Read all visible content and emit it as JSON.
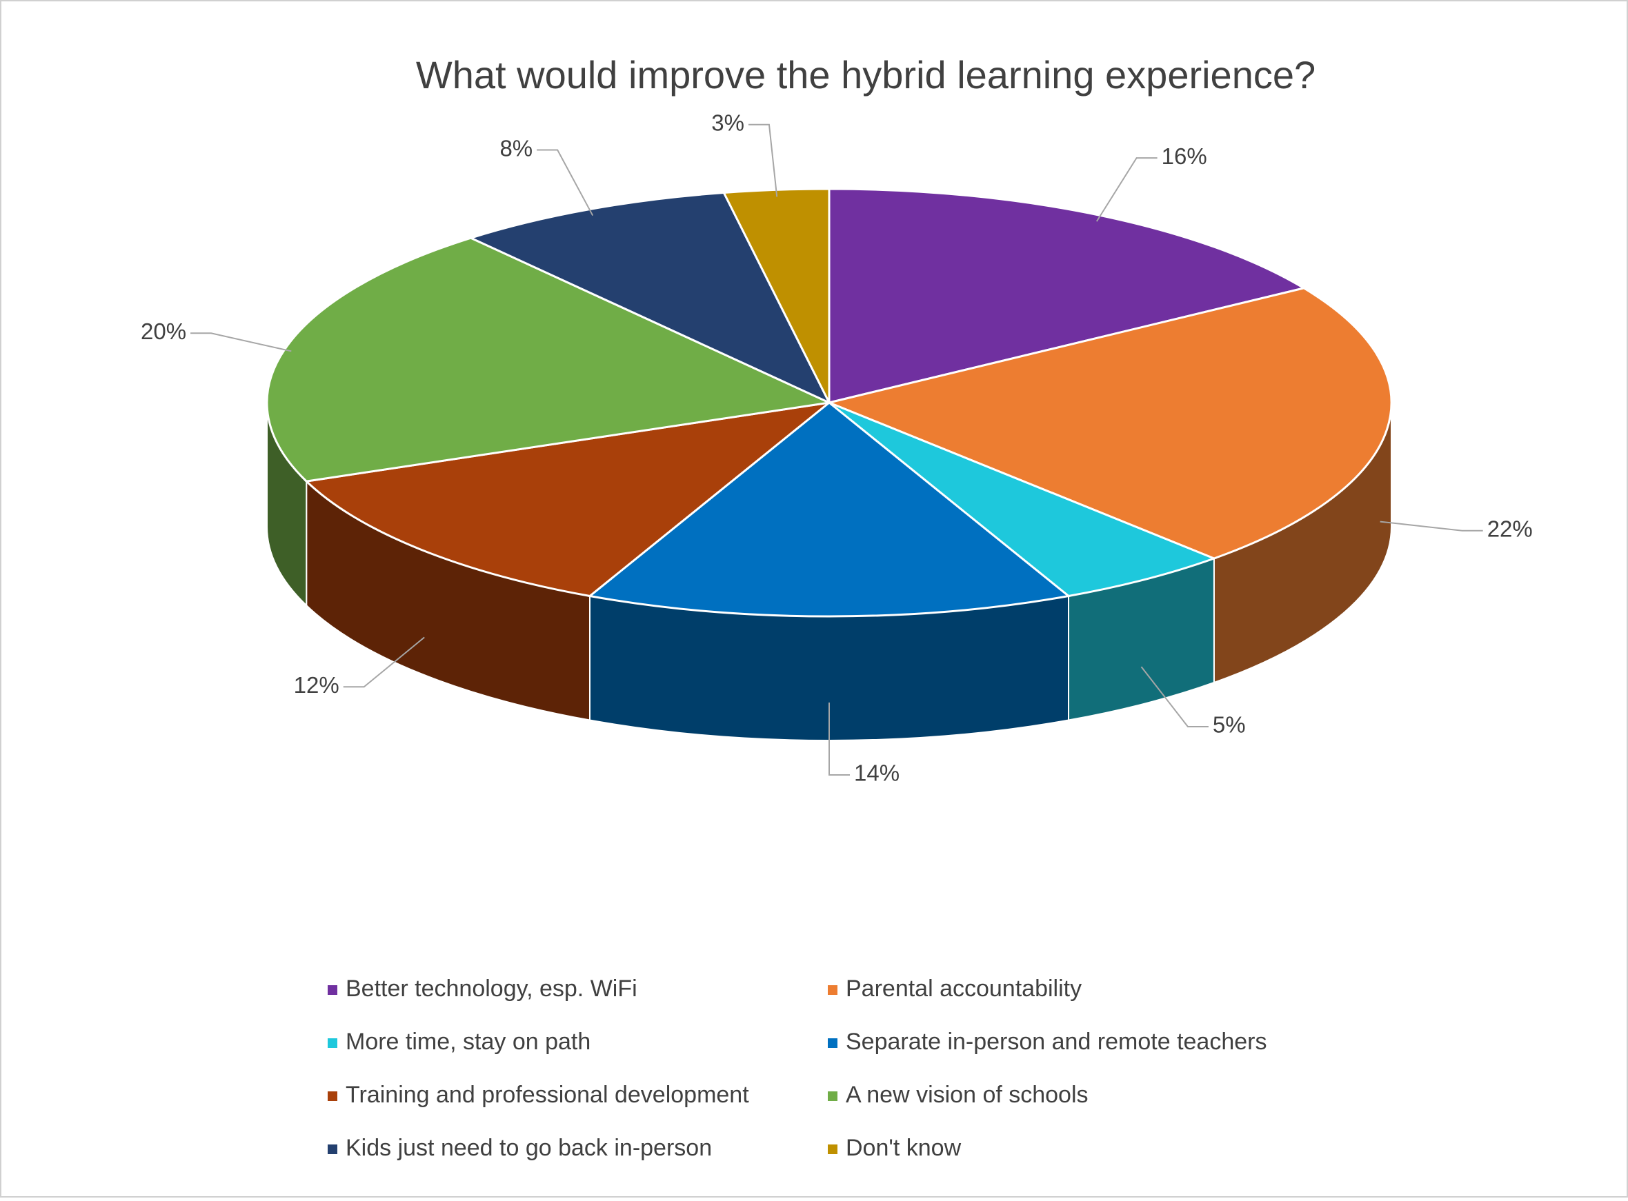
{
  "chart_data": {
    "type": "pie",
    "title": "What would improve the hybrid learning experience?",
    "categories": [
      "Better technology, esp. WiFi",
      "Parental accountability",
      "More time, stay on path",
      "Separate in-person and remote teachers",
      "Training and professional development",
      "A new vision of schools",
      "Kids just need to go back in-person",
      "Don't know"
    ],
    "values": [
      16,
      22,
      5,
      14,
      12,
      20,
      8,
      3
    ],
    "value_labels": [
      "16%",
      "22%",
      "5%",
      "14%",
      "12%",
      "20%",
      "8%",
      "3%"
    ],
    "colors": [
      "#7030a0",
      "#ed7d31",
      "#1ec8dc",
      "#0070c0",
      "#a9400a",
      "#70ad47",
      "#24406f",
      "#bf9000"
    ]
  }
}
